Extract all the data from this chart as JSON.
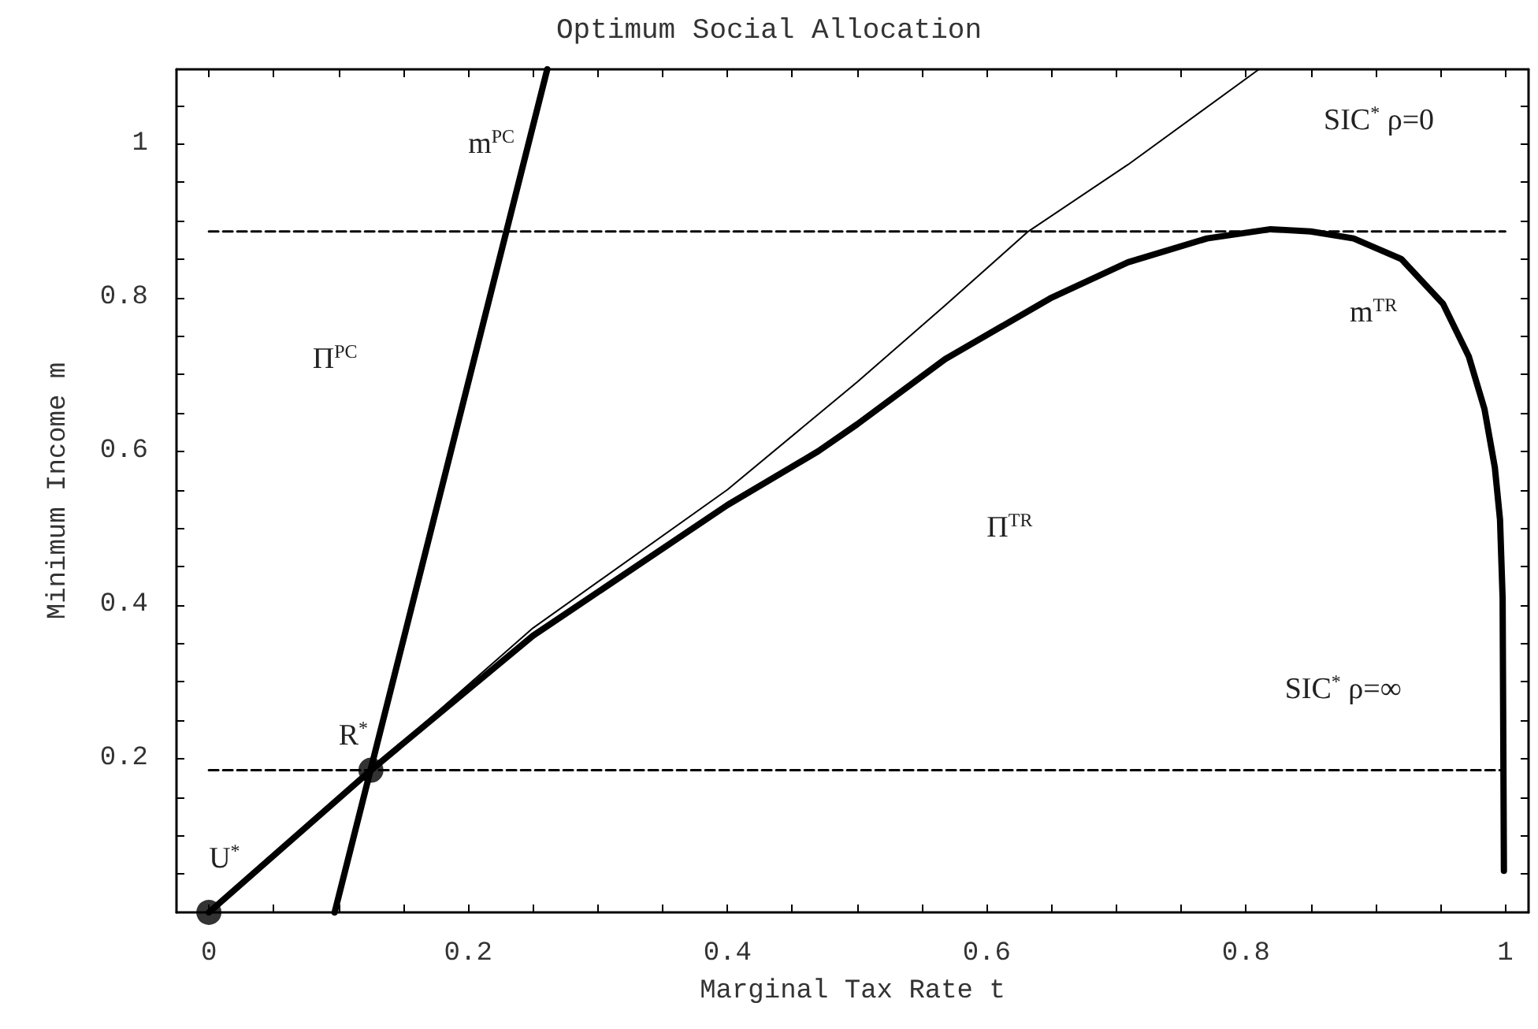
{
  "chart_data": {
    "type": "line",
    "title": "Optimum Social Allocation",
    "xlabel": "Marginal Tax Rate t",
    "ylabel": "Minimum Income m",
    "xlim": [
      -0.025,
      1.018
    ],
    "ylim": [
      0,
      1.097
    ],
    "xticks": [
      0,
      {
        "value": 0.05,
        "label": null
      },
      {
        "value": 0.1,
        "label": null
      },
      {
        "value": 0.15,
        "label": null
      },
      0.2,
      {
        "value": 0.25,
        "label": null
      },
      {
        "value": 0.3,
        "label": null
      },
      {
        "value": 0.35,
        "label": null
      },
      0.4,
      {
        "value": 0.45,
        "label": null
      },
      {
        "value": 0.5,
        "label": null
      },
      {
        "value": 0.55,
        "label": null
      },
      0.6,
      {
        "value": 0.65,
        "label": null
      },
      {
        "value": 0.7,
        "label": null
      },
      {
        "value": 0.75,
        "label": null
      },
      0.8,
      {
        "value": 0.85,
        "label": null
      },
      {
        "value": 0.9,
        "label": null
      },
      {
        "value": 0.95,
        "label": null
      },
      1
    ],
    "yticks": [
      {
        "value": 0.05,
        "label": null
      },
      {
        "value": 0.1,
        "label": null
      },
      {
        "value": 0.15,
        "label": null
      },
      0.2,
      {
        "value": 0.25,
        "label": null
      },
      {
        "value": 0.3,
        "label": null
      },
      {
        "value": 0.35,
        "label": null
      },
      0.4,
      {
        "value": 0.45,
        "label": null
      },
      {
        "value": 0.5,
        "label": null
      },
      {
        "value": 0.55,
        "label": null
      },
      0.6,
      {
        "value": 0.65,
        "label": null
      },
      {
        "value": 0.7,
        "label": null
      },
      {
        "value": 0.75,
        "label": null
      },
      0.8,
      {
        "value": 0.85,
        "label": null
      },
      {
        "value": 0.9,
        "label": null
      },
      {
        "value": 0.95,
        "label": null
      },
      1,
      {
        "value": 1.05,
        "label": null
      }
    ],
    "grid": false,
    "marker": "none",
    "series": [
      {
        "color": "#000000",
        "line_style": "solid",
        "x": [
          0.097,
          0.261
        ],
        "values": [
          0,
          1.097
        ]
      },
      {
        "color": "#000000",
        "line_style": "solid",
        "x": [
          0,
          0.125,
          0.25,
          0.4,
          0.47,
          0.5,
          0.568,
          0.649,
          0.709,
          0.77,
          0.819,
          0.85,
          0.883,
          0.92,
          0.952,
          0.972,
          0.984,
          0.992,
          0.996,
          0.998,
          0.999
        ],
        "values": [
          0,
          0.185,
          0.36,
          0.53,
          0.6,
          0.635,
          0.72,
          0.799,
          0.846,
          0.877,
          0.889,
          0.886,
          0.877,
          0.85,
          0.792,
          0.723,
          0.655,
          0.579,
          0.511,
          0.409,
          0.054
        ]
      },
      {
        "color": "#000000",
        "line_style": "solid",
        "x": [
          0,
          0.125,
          0.25,
          0.4,
          0.5,
          0.568,
          0.632,
          0.709,
          0.81
        ],
        "values": [
          0,
          0.185,
          0.37,
          0.55,
          0.69,
          0.79,
          0.886,
          0.973,
          1.097
        ]
      },
      {
        "color": "#000000",
        "line_style": "dashed",
        "x": [
          0,
          1
        ],
        "values": [
          0.886,
          0.886
        ]
      },
      {
        "color": "#000000",
        "line_style": "dashed",
        "x": [
          0,
          1
        ],
        "values": [
          0.185,
          0.185
        ]
      },
      {
        "type": "scatter",
        "marker": "circle",
        "color": "#000000",
        "x": [
          0,
          0.125
        ],
        "values": [
          0,
          0.185
        ]
      }
    ],
    "annotations": [
      "U$^{*}$",
      "R$^{*}$",
      "m$^{PC}$",
      "Π$^{PC}$",
      "Π$^{TR}$",
      "m$^{TR}$",
      "SIC$^{*}$ ρ=0",
      "SIC$^{*}$ ρ=∞"
    ]
  }
}
